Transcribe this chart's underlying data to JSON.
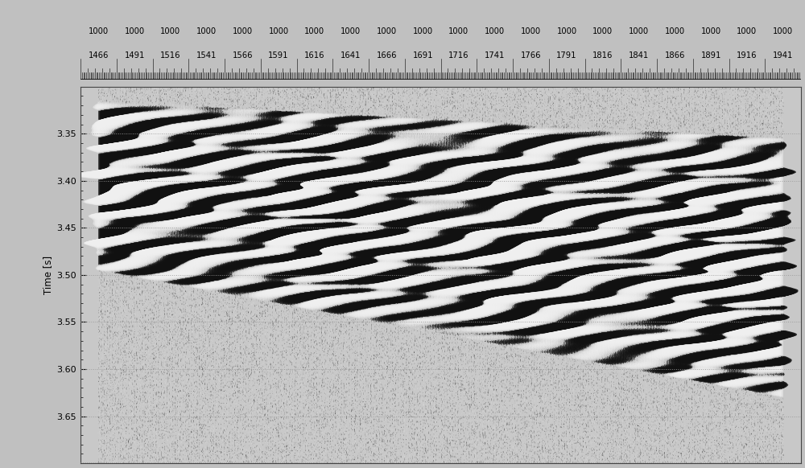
{
  "fig_width": 10.0,
  "fig_height": 5.82,
  "dpi": 100,
  "outer_bg": "#c0c0c0",
  "header_bg": "#d4d4d4",
  "plot_bg": "#c8c8c8",
  "ylabel": "Time [s]",
  "ymin": 3.3,
  "ymax": 3.7,
  "ytick_major": [
    3.35,
    3.4,
    3.45,
    3.5,
    3.55,
    3.6,
    3.65
  ],
  "ytick_minor_step": 0.01,
  "x_labels_row1": [
    "1000",
    "1000",
    "1000",
    "1000",
    "1000",
    "1000",
    "1000",
    "1000",
    "1000",
    "1000",
    "1000",
    "1000",
    "1000",
    "1000",
    "1000",
    "1000",
    "1000",
    "1000",
    "1000",
    "1000"
  ],
  "x_labels_row2": [
    "1466",
    "1491",
    "1516",
    "1541",
    "1566",
    "1591",
    "1616",
    "1641",
    "1666",
    "1691",
    "1716",
    "1741",
    "1766",
    "1791",
    "1816",
    "1841",
    "1866",
    "1891",
    "1916",
    "1941"
  ],
  "gridline_color": "#999999",
  "gridline_style": "dotted",
  "num_traces": 600,
  "num_time_samples": 500,
  "seismic_freq": 40,
  "seismic_freq2": 70,
  "seed": 12345
}
